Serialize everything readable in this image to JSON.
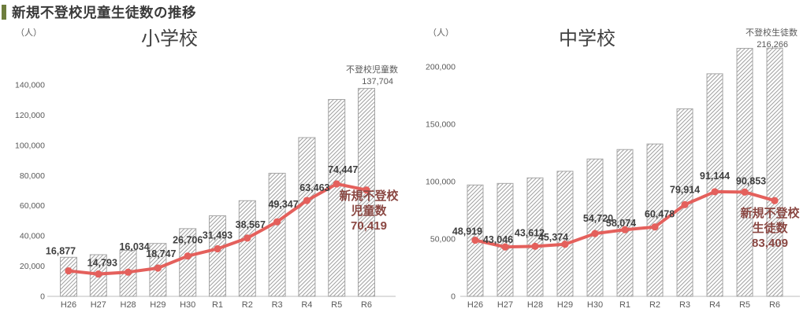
{
  "page": {
    "title": "新規不登校児童生徒数の推移"
  },
  "colors": {
    "accent": "#6e7d3d",
    "line": "#e4605c",
    "bar_hatch": "#a0a0a0",
    "bar_border": "#a6a6a6",
    "data_label": "#3f3f3f",
    "axis_text": "#595959",
    "axis_line": "#c9c9c9",
    "total_annotation": "#595959",
    "latest_annotation": "#8a4742"
  },
  "chart_data": [
    {
      "type": "bar+line",
      "title": "小学校",
      "unit_label": "（人）",
      "categories": [
        "H26",
        "H27",
        "H28",
        "H29",
        "H30",
        "R1",
        "R2",
        "R3",
        "R4",
        "R5",
        "R6"
      ],
      "series": [
        {
          "name": "不登校児童数",
          "type": "bar",
          "values": [
            25864,
            27583,
            30448,
            35032,
            44841,
            53350,
            63350,
            81498,
            105112,
            130370,
            137704
          ]
        },
        {
          "name": "新規不登校児童数",
          "type": "line",
          "values": [
            16877,
            14793,
            16034,
            18747,
            26706,
            31493,
            38567,
            49347,
            63463,
            74447,
            70419
          ]
        }
      ],
      "ylim": [
        0,
        140000
      ],
      "yticks": [
        0,
        20000,
        40000,
        60000,
        80000,
        100000,
        120000,
        140000
      ],
      "grid": false,
      "legend": false,
      "annotations": {
        "bar_total": {
          "lines": [
            "不登校児童数",
            "137,704"
          ]
        },
        "line_latest": {
          "lines": [
            "新規不登校",
            "児童数",
            "70,419"
          ]
        }
      }
    },
    {
      "type": "bar+line",
      "title": "中学校",
      "unit_label": "（人）",
      "categories": [
        "H26",
        "H27",
        "H28",
        "H29",
        "H30",
        "R1",
        "R2",
        "R3",
        "R4",
        "R5",
        "R6"
      ],
      "series": [
        {
          "name": "不登校生徒数",
          "type": "bar",
          "values": [
            97033,
            98408,
            103235,
            108999,
            119687,
            127922,
            132777,
            163442,
            193936,
            216112,
            216266
          ]
        },
        {
          "name": "新規不登校生徒数",
          "type": "line",
          "values": [
            48919,
            43046,
            43612,
            45374,
            54720,
            58074,
            60478,
            79914,
            91144,
            90853,
            83409
          ]
        }
      ],
      "ylim": [
        0,
        200000
      ],
      "yticks": [
        0,
        50000,
        100000,
        150000,
        200000
      ],
      "grid": false,
      "legend": false,
      "annotations": {
        "bar_total": {
          "lines": [
            "不登校生徒数",
            "216,266"
          ]
        },
        "line_latest": {
          "lines": [
            "新規不登校",
            "生徒数",
            "83,409"
          ]
        }
      }
    }
  ]
}
